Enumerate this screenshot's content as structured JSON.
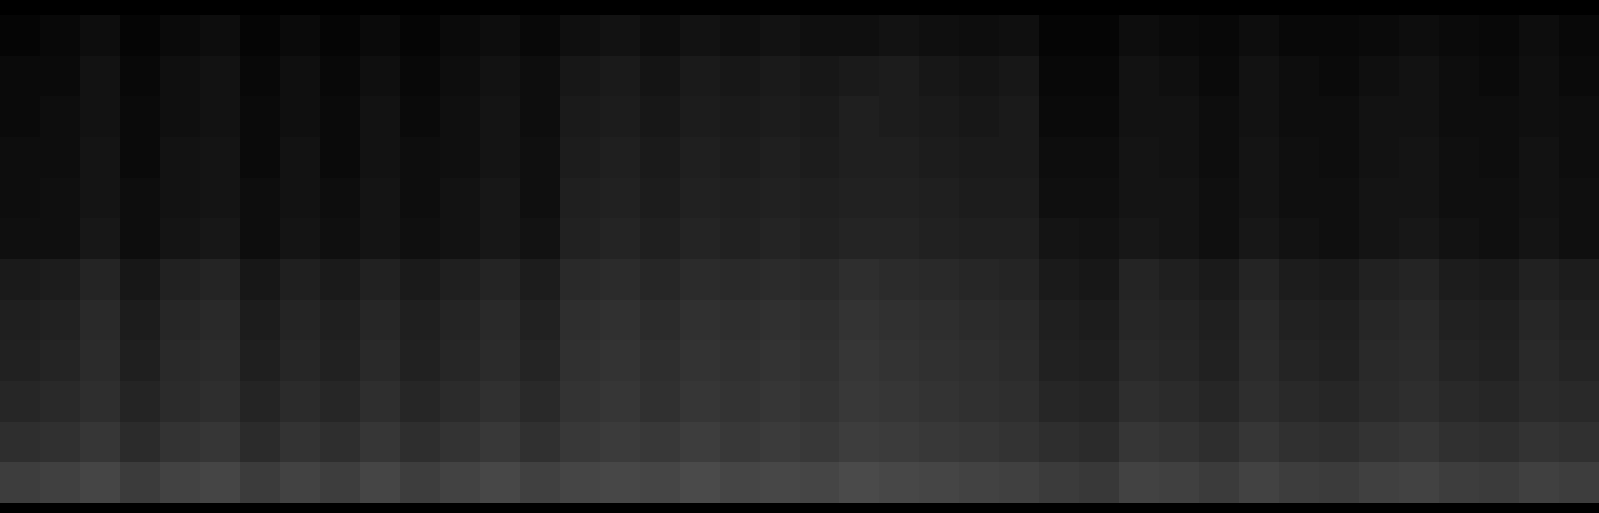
{
  "chart_data": {
    "type": "heatmap",
    "tick_labels": false,
    "zlim": [
      0,
      100
    ],
    "z": [
      [
        2,
        3,
        5,
        2,
        4,
        5,
        2,
        4,
        2,
        4,
        2,
        4,
        5,
        3,
        6,
        7,
        5,
        7,
        6,
        7,
        6,
        6,
        7,
        6,
        5,
        6,
        2,
        2,
        5,
        4,
        3,
        5,
        3,
        3,
        4,
        5,
        4,
        3,
        5,
        3
      ],
      [
        4,
        4,
        7,
        3,
        6,
        7,
        3,
        6,
        3,
        6,
        3,
        5,
        7,
        5,
        9,
        10,
        8,
        10,
        9,
        10,
        9,
        10,
        11,
        9,
        8,
        9,
        3,
        3,
        7,
        6,
        4,
        7,
        5,
        4,
        6,
        7,
        5,
        4,
        6,
        4
      ],
      [
        4,
        5,
        7,
        4,
        6,
        7,
        4,
        6,
        4,
        7,
        4,
        6,
        8,
        5,
        10,
        11,
        9,
        11,
        10,
        11,
        10,
        12,
        11,
        10,
        9,
        10,
        4,
        4,
        7,
        7,
        5,
        7,
        5,
        5,
        7,
        7,
        5,
        5,
        6,
        5
      ],
      [
        5,
        5,
        8,
        4,
        7,
        8,
        4,
        7,
        4,
        7,
        5,
        6,
        8,
        6,
        11,
        12,
        10,
        12,
        11,
        12,
        11,
        12,
        12,
        11,
        10,
        10,
        5,
        5,
        8,
        7,
        5,
        8,
        6,
        5,
        7,
        8,
        6,
        5,
        7,
        5
      ],
      [
        5,
        6,
        8,
        5,
        7,
        8,
        5,
        7,
        5,
        8,
        5,
        7,
        9,
        6,
        12,
        13,
        11,
        13,
        12,
        13,
        12,
        13,
        13,
        12,
        11,
        11,
        6,
        6,
        8,
        8,
        6,
        8,
        6,
        6,
        8,
        8,
        6,
        6,
        7,
        6
      ],
      [
        6,
        6,
        9,
        5,
        8,
        9,
        5,
        8,
        6,
        8,
        6,
        7,
        9,
        7,
        13,
        14,
        12,
        14,
        13,
        14,
        13,
        14,
        14,
        13,
        12,
        12,
        8,
        7,
        9,
        8,
        6,
        9,
        7,
        6,
        8,
        9,
        7,
        6,
        8,
        6
      ],
      [
        10,
        11,
        14,
        9,
        13,
        14,
        9,
        12,
        10,
        13,
        10,
        12,
        14,
        11,
        16,
        17,
        15,
        17,
        16,
        17,
        16,
        18,
        17,
        16,
        15,
        14,
        10,
        9,
        14,
        12,
        10,
        14,
        11,
        10,
        13,
        14,
        11,
        10,
        13,
        11
      ],
      [
        12,
        13,
        16,
        11,
        15,
        16,
        11,
        14,
        12,
        15,
        12,
        14,
        16,
        13,
        18,
        19,
        17,
        19,
        18,
        19,
        18,
        20,
        19,
        18,
        17,
        16,
        12,
        11,
        15,
        14,
        12,
        16,
        13,
        12,
        15,
        16,
        13,
        12,
        15,
        13
      ],
      [
        13,
        14,
        17,
        12,
        16,
        17,
        12,
        15,
        13,
        16,
        13,
        15,
        17,
        14,
        19,
        20,
        18,
        20,
        19,
        20,
        19,
        21,
        20,
        19,
        18,
        17,
        13,
        12,
        16,
        15,
        13,
        17,
        14,
        13,
        16,
        17,
        14,
        13,
        16,
        14
      ],
      [
        15,
        16,
        18,
        14,
        17,
        18,
        14,
        17,
        15,
        18,
        15,
        17,
        19,
        16,
        20,
        21,
        19,
        21,
        20,
        21,
        20,
        22,
        21,
        20,
        19,
        18,
        15,
        14,
        18,
        17,
        15,
        18,
        16,
        15,
        17,
        18,
        16,
        15,
        17,
        16
      ],
      [
        18,
        19,
        21,
        17,
        20,
        21,
        17,
        20,
        18,
        21,
        18,
        20,
        22,
        19,
        22,
        23,
        22,
        24,
        22,
        23,
        22,
        24,
        23,
        22,
        21,
        20,
        18,
        17,
        21,
        20,
        18,
        21,
        19,
        18,
        20,
        21,
        19,
        18,
        20,
        19
      ],
      [
        24,
        25,
        27,
        23,
        26,
        27,
        23,
        26,
        24,
        27,
        24,
        26,
        28,
        25,
        27,
        28,
        27,
        29,
        27,
        28,
        27,
        29,
        28,
        27,
        26,
        25,
        23,
        22,
        26,
        25,
        23,
        26,
        24,
        23,
        25,
        26,
        24,
        23,
        25,
        24
      ]
    ]
  }
}
